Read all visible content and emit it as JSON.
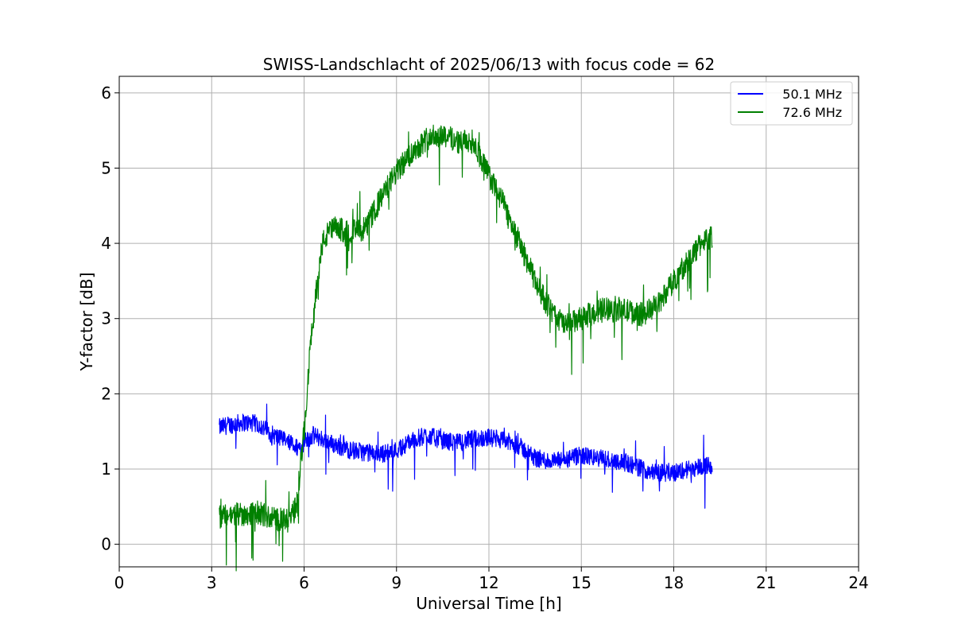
{
  "chart_data": {
    "type": "line",
    "title": "SWISS-Landschlacht of 2025/06/13 with focus code = 62",
    "xlabel": "Universal Time [h]",
    "ylabel": "Y-factor [dB]",
    "xlim": [
      0,
      24
    ],
    "ylim": [
      -0.3,
      6.22
    ],
    "x_ticks": [
      0,
      3,
      6,
      9,
      12,
      15,
      18,
      21,
      24
    ],
    "y_ticks": [
      0,
      1,
      2,
      3,
      4,
      5,
      6
    ],
    "grid": true,
    "legend_position": "top-right",
    "series": [
      {
        "name": "   50.1 MHz",
        "color": "#0000ff",
        "noise_amplitude": 0.12,
        "x": [
          3.25,
          3.5,
          4.0,
          4.5,
          5.0,
          5.5,
          5.8,
          6.0,
          6.3,
          6.7,
          7.0,
          7.5,
          8.0,
          8.5,
          9.0,
          9.5,
          10.0,
          10.5,
          11.0,
          11.5,
          12.0,
          12.5,
          13.0,
          13.5,
          14.0,
          14.5,
          15.0,
          15.5,
          16.0,
          16.5,
          17.0,
          17.5,
          18.0,
          18.5,
          19.0,
          19.25
        ],
        "y": [
          1.55,
          1.58,
          1.62,
          1.6,
          1.45,
          1.35,
          1.28,
          1.35,
          1.45,
          1.38,
          1.32,
          1.25,
          1.22,
          1.2,
          1.25,
          1.38,
          1.45,
          1.38,
          1.35,
          1.4,
          1.42,
          1.38,
          1.3,
          1.15,
          1.1,
          1.12,
          1.18,
          1.15,
          1.12,
          1.08,
          1.0,
          0.95,
          0.95,
          1.0,
          1.05,
          1.05
        ]
      },
      {
        "name": "   72.6 MHz",
        "color": "#008000",
        "noise_amplitude": 0.16,
        "x": [
          3.25,
          3.5,
          4.0,
          4.5,
          5.0,
          5.5,
          5.75,
          6.0,
          6.2,
          6.4,
          6.6,
          6.8,
          7.0,
          7.5,
          8.0,
          8.5,
          9.0,
          9.5,
          10.0,
          10.5,
          11.0,
          11.5,
          12.0,
          12.5,
          13.0,
          13.5,
          14.0,
          14.5,
          15.0,
          15.5,
          16.0,
          16.5,
          17.0,
          17.5,
          18.0,
          18.5,
          19.0,
          19.25
        ],
        "y": [
          0.35,
          0.38,
          0.4,
          0.42,
          0.35,
          0.3,
          0.5,
          1.5,
          2.6,
          3.4,
          4.0,
          4.15,
          4.2,
          4.15,
          4.2,
          4.6,
          4.95,
          5.2,
          5.4,
          5.45,
          5.35,
          5.35,
          4.9,
          4.5,
          4.0,
          3.5,
          3.1,
          2.9,
          3.0,
          3.1,
          3.15,
          3.1,
          3.05,
          3.2,
          3.5,
          3.8,
          4.05,
          4.1
        ]
      }
    ]
  }
}
